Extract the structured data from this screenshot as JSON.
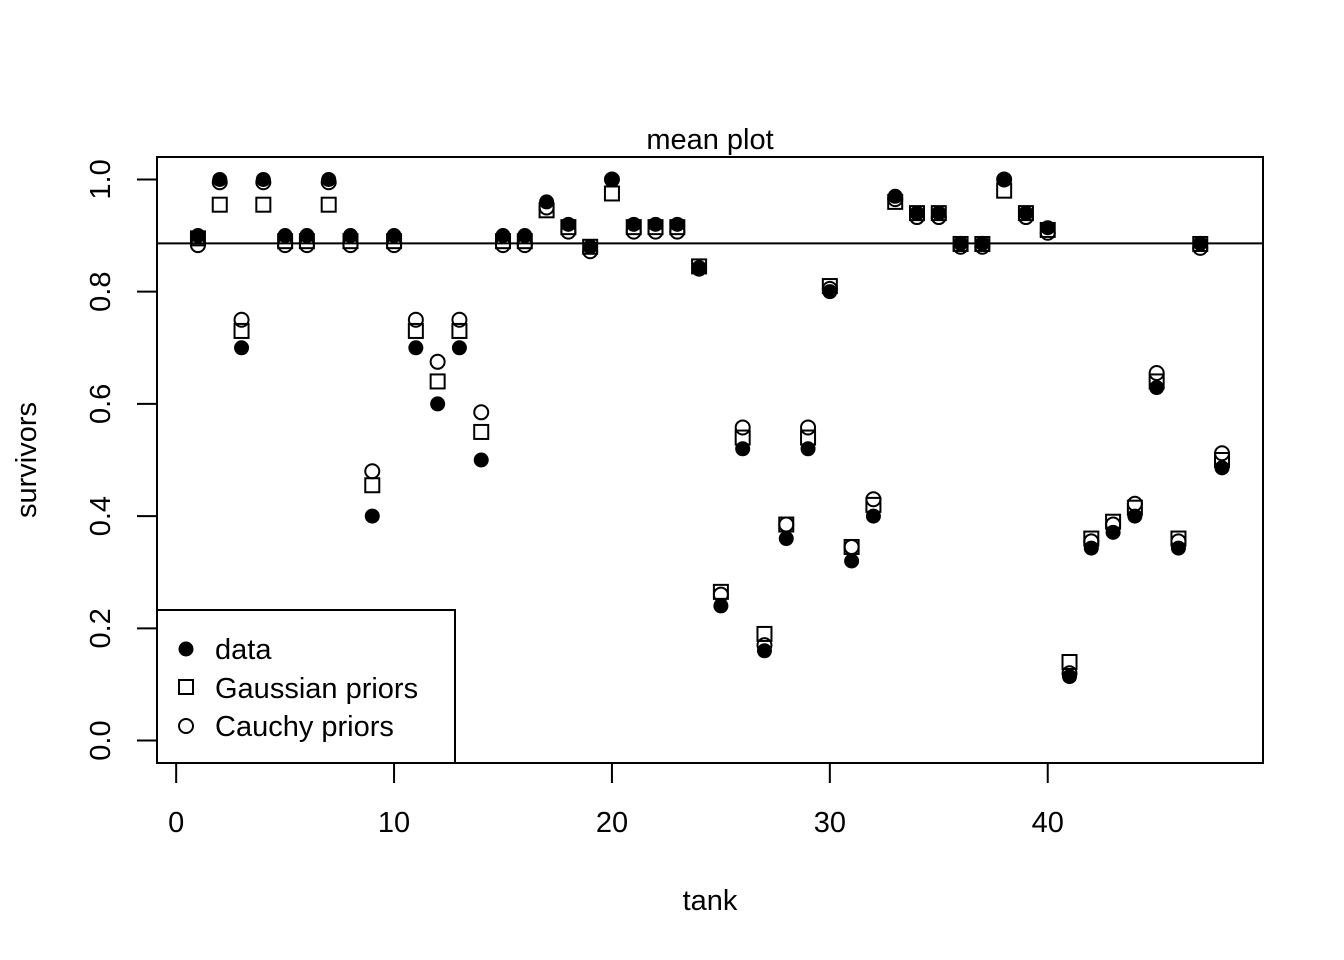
{
  "chart_data": {
    "type": "scatter",
    "title": "mean plot",
    "xlabel": "tank",
    "ylabel": "survivors",
    "xlim": [
      -0.88,
      49.88
    ],
    "ylim": [
      -0.04,
      1.04
    ],
    "x_ticks": [
      0,
      10,
      20,
      30,
      40
    ],
    "y_ticks": [
      0.0,
      0.2,
      0.4,
      0.6,
      0.8,
      1.0
    ],
    "x_tick_labels": [
      "0",
      "10",
      "20",
      "30",
      "40"
    ],
    "y_tick_labels": [
      "0.0",
      "0.2",
      "0.4",
      "0.6",
      "0.8",
      "1.0"
    ],
    "hline": 0.886,
    "x": [
      1,
      2,
      3,
      4,
      5,
      6,
      7,
      8,
      9,
      10,
      11,
      12,
      13,
      14,
      15,
      16,
      17,
      18,
      19,
      20,
      21,
      22,
      23,
      24,
      25,
      26,
      27,
      28,
      29,
      30,
      31,
      32,
      33,
      34,
      35,
      36,
      37,
      38,
      39,
      40,
      41,
      42,
      43,
      44,
      45,
      46,
      47,
      48
    ],
    "series": [
      {
        "name": "data",
        "marker": "filled-circle",
        "values": [
          0.9,
          1.0,
          0.7,
          1.0,
          0.9,
          0.9,
          1.0,
          0.9,
          0.4,
          0.9,
          0.7,
          0.6,
          0.7,
          0.5,
          0.9,
          0.9,
          0.96,
          0.92,
          0.88,
          1.0,
          0.92,
          0.92,
          0.92,
          0.84,
          0.24,
          0.52,
          0.16,
          0.36,
          0.52,
          0.8,
          0.32,
          0.4,
          0.97,
          0.94,
          0.94,
          0.886,
          0.886,
          1.0,
          0.94,
          0.914,
          0.114,
          0.343,
          0.371,
          0.4,
          0.629,
          0.343,
          0.886,
          0.486
        ]
      },
      {
        "name": "Gaussian priors",
        "marker": "open-square",
        "values": [
          0.895,
          0.955,
          0.73,
          0.955,
          0.89,
          0.89,
          0.955,
          0.89,
          0.455,
          0.89,
          0.73,
          0.64,
          0.73,
          0.55,
          0.89,
          0.89,
          0.945,
          0.915,
          0.88,
          0.975,
          0.915,
          0.915,
          0.915,
          0.845,
          0.265,
          0.54,
          0.19,
          0.385,
          0.54,
          0.81,
          0.345,
          0.42,
          0.96,
          0.94,
          0.94,
          0.885,
          0.885,
          0.98,
          0.94,
          0.91,
          0.14,
          0.36,
          0.39,
          0.415,
          0.64,
          0.36,
          0.885,
          0.5
        ]
      },
      {
        "name": "Cauchy priors",
        "marker": "open-circle",
        "values": [
          0.883,
          0.995,
          0.75,
          0.995,
          0.883,
          0.883,
          0.995,
          0.883,
          0.48,
          0.883,
          0.75,
          0.675,
          0.75,
          0.585,
          0.883,
          0.883,
          0.95,
          0.907,
          0.872,
          1.0,
          0.907,
          0.907,
          0.907,
          0.842,
          0.26,
          0.558,
          0.17,
          0.385,
          0.558,
          0.805,
          0.345,
          0.43,
          0.965,
          0.933,
          0.933,
          0.88,
          0.88,
          1.0,
          0.933,
          0.905,
          0.12,
          0.355,
          0.385,
          0.422,
          0.655,
          0.355,
          0.878,
          0.512
        ]
      }
    ],
    "legend": {
      "position": "bottom-left",
      "entries": [
        "data",
        "Gaussian priors",
        "Cauchy priors"
      ]
    },
    "grid": false
  }
}
